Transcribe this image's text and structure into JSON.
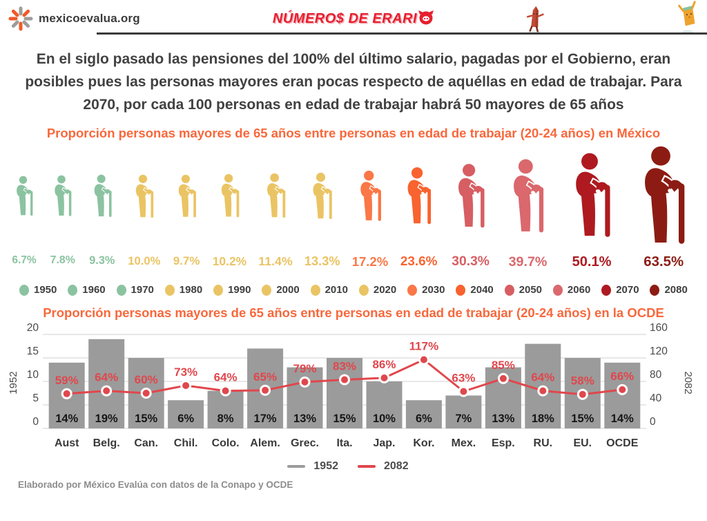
{
  "header": {
    "site": "mexicoevalua.org",
    "brand_prefix": "NÚMERO$ DE ERARI",
    "icons": {
      "logo": "starburst-icon",
      "brand_final_o": "pig-icon",
      "mascot_left": "crayon-mascot-icon",
      "mascot_right": "bill-mascot-icon"
    },
    "colors": {
      "brand_red": "#e6202f",
      "logo_orange": "#f15a29",
      "logo_gray": "#9d9d9c"
    }
  },
  "headline": {
    "text": "En el siglo pasado las pensiones del 100% del último salario, pagadas por el Gobierno, eran posibles pues las personas mayores eran pocas respecto de aquéllas en edad de trabajar. Para 2070, por cada 100 personas en edad de trabajar habrá 50 mayores de 65 años"
  },
  "chart_data": [
    {
      "type": "pictogram",
      "title": "Proporción personas mayores de 65 años entre personas en edad de trabajar (20-24 años) en México",
      "categories": [
        "1950",
        "1960",
        "1970",
        "1980",
        "1990",
        "2000",
        "2010",
        "2020",
        "2030",
        "2040",
        "2050",
        "2060",
        "2070",
        "2080"
      ],
      "values": [
        6.7,
        7.8,
        9.3,
        10.0,
        9.7,
        10.2,
        11.4,
        13.3,
        17.2,
        23.6,
        30.3,
        39.7,
        50.1,
        63.5
      ],
      "labels": [
        "6.7%",
        "7.8%",
        "9.3%",
        "10.0%",
        "9.7%",
        "10.2%",
        "11.4%",
        "13.3%",
        "17.2%",
        "23.6%",
        "30.3%",
        "39.7%",
        "50.1%",
        "63.5%"
      ],
      "colors": [
        "#8bc3a1",
        "#8bc3a1",
        "#8bc3a1",
        "#eac464",
        "#eac464",
        "#eac464",
        "#eac464",
        "#eac464",
        "#fa7747",
        "#f8632f",
        "#d75e63",
        "#da686d",
        "#ae1a20",
        "#8c1c13"
      ],
      "icon": "elderly-person-with-cane-icon",
      "legend_position": "bottom"
    },
    {
      "type": "bar+line",
      "title": "Proporción personas mayores de 65 años entre personas en edad de trabajar (20-24 años) en la OCDE",
      "categories": [
        "Aust",
        "Belg.",
        "Can.",
        "Chil.",
        "Colo.",
        "Alem.",
        "Grec.",
        "Ita.",
        "Jap.",
        "Kor.",
        "Mex.",
        "Esp.",
        "RU.",
        "EU.",
        "OCDE"
      ],
      "series": [
        {
          "name": "1952",
          "type": "bar",
          "axis": "left",
          "color": "#9b9b9b",
          "values": [
            14,
            19,
            15,
            6,
            8,
            17,
            13,
            15,
            10,
            6,
            7,
            13,
            18,
            15,
            14
          ],
          "labels": [
            "14%",
            "19%",
            "15%",
            "6%",
            "8%",
            "17%",
            "13%",
            "15%",
            "10%",
            "6%",
            "7%",
            "13%",
            "18%",
            "15%",
            "14%"
          ]
        },
        {
          "name": "2082",
          "type": "line",
          "axis": "right",
          "color": "#e0474c",
          "values": [
            59,
            64,
            60,
            73,
            64,
            65,
            79,
            83,
            86,
            117,
            63,
            85,
            64,
            58,
            66
          ],
          "labels": [
            "59%",
            "64%",
            "60%",
            "73%",
            "64%",
            "65%",
            "79%",
            "83%",
            "86%",
            "117%",
            "63%",
            "85%",
            "64%",
            "58%",
            "66%"
          ]
        }
      ],
      "left_axis": {
        "title": "1952",
        "ticks": [
          0,
          5,
          10,
          15,
          20
        ],
        "range": [
          0,
          20
        ]
      },
      "right_axis": {
        "title": "2082",
        "ticks": [
          0,
          40,
          80,
          120,
          160
        ],
        "range": [
          0,
          160
        ]
      },
      "grid": true,
      "legend": [
        {
          "label": "1952",
          "color": "#9b9b9b"
        },
        {
          "label": "2082",
          "color": "#e0474c"
        }
      ]
    }
  ],
  "footer": {
    "text": "Elaborado por México Evalúa con datos de la Conapo y OCDE"
  }
}
